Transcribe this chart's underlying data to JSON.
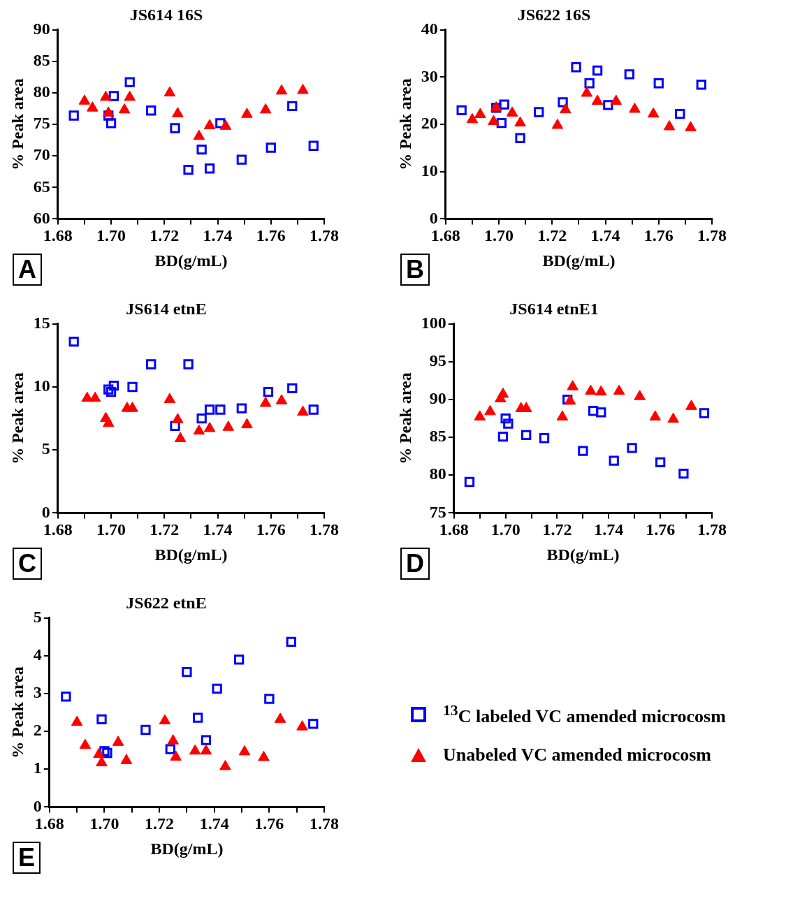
{
  "chart_data": [
    {
      "type": "scatter",
      "title": "JS614 16S",
      "xlabel": "BD(g/mL)",
      "ylabel": "% Peak area",
      "annotations": [
        "A"
      ],
      "xlim": [
        1.68,
        1.78
      ],
      "ylim": [
        60,
        90
      ],
      "yticks": [
        60,
        65,
        70,
        75,
        80,
        85,
        90
      ],
      "grid": false,
      "xticks": [
        1.68,
        {
          "value": 1.69,
          "label": null
        },
        {
          "value": 1.7,
          "label": "1.70"
        },
        {
          "value": 1.71,
          "label": null
        },
        1.72,
        {
          "value": 1.73,
          "label": null
        },
        1.74,
        {
          "value": 1.75,
          "label": null
        },
        1.76,
        {
          "value": 1.77,
          "label": null
        },
        1.78
      ],
      "series": [
        {
          "color": "#0000ff",
          "marker": "square",
          "x": [
            1.686,
            1.699,
            1.7,
            1.701,
            1.707,
            1.715,
            1.724,
            1.729,
            1.734,
            1.737,
            1.741,
            1.749,
            1.76,
            1.768,
            1.776
          ],
          "values": [
            76.4,
            76.4,
            75.2,
            79.5,
            81.7,
            77.2,
            74.4,
            67.8,
            71.0,
            68.0,
            75.2,
            69.4,
            71.3,
            77.9,
            71.6
          ]
        },
        {
          "color": "#ff0000",
          "marker": "triangle",
          "x": [
            1.69,
            1.693,
            1.698,
            1.699,
            1.705,
            1.707,
            1.722,
            1.725,
            1.733,
            1.737,
            1.743,
            1.751,
            1.758,
            1.764,
            1.772
          ],
          "values": [
            78.7,
            77.6,
            79.3,
            76.8,
            77.3,
            79.3,
            80.0,
            76.7,
            73.1,
            74.8,
            74.7,
            76.6,
            77.3,
            80.3,
            80.4
          ]
        }
      ]
    },
    {
      "type": "scatter",
      "title": "JS622 16S",
      "xlabel": "BD(g/mL)",
      "ylabel": "% Peak area",
      "annotations": [
        "B"
      ],
      "xlim": [
        1.68,
        1.78
      ],
      "ylim": [
        0,
        40
      ],
      "yticks": [
        0,
        10,
        20,
        30,
        40
      ],
      "grid": false,
      "xticks": [
        1.68,
        {
          "value": 1.69,
          "label": null
        },
        {
          "value": 1.7,
          "label": "1.70"
        },
        {
          "value": 1.71,
          "label": null
        },
        1.72,
        {
          "value": 1.73,
          "label": null
        },
        1.74,
        {
          "value": 1.75,
          "label": null
        },
        1.76,
        {
          "value": 1.77,
          "label": null
        },
        1.78
      ],
      "series": [
        {
          "color": "#0000ff",
          "marker": "square",
          "x": [
            1.686,
            1.699,
            1.701,
            1.702,
            1.708,
            1.715,
            1.724,
            1.729,
            1.734,
            1.737,
            1.741,
            1.749,
            1.76,
            1.768,
            1.776
          ],
          "values": [
            23.0,
            23.5,
            20.3,
            24.2,
            17.1,
            22.6,
            24.7,
            32.1,
            28.7,
            31.4,
            24.1,
            30.6,
            28.7,
            22.2,
            28.4
          ]
        },
        {
          "color": "#ff0000",
          "marker": "triangle",
          "x": [
            1.69,
            1.693,
            1.698,
            1.699,
            1.705,
            1.708,
            1.722,
            1.725,
            1.733,
            1.737,
            1.744,
            1.751,
            1.758,
            1.764,
            1.772
          ],
          "values": [
            21.0,
            22.1,
            20.6,
            23.5,
            22.4,
            20.3,
            19.8,
            23.1,
            26.6,
            24.9,
            24.9,
            23.2,
            22.2,
            19.5,
            19.3
          ]
        }
      ]
    },
    {
      "type": "scatter",
      "title": "JS614 etnE",
      "xlabel": "BD(g/mL)",
      "ylabel": "% Peak area",
      "annotations": [
        "C"
      ],
      "xlim": [
        1.68,
        1.78
      ],
      "ylim": [
        0,
        15
      ],
      "yticks": [
        0,
        5,
        10,
        15
      ],
      "grid": false,
      "xticks": [
        1.68,
        {
          "value": 1.69,
          "label": null
        },
        {
          "value": 1.7,
          "label": "1.70"
        },
        {
          "value": 1.71,
          "label": null
        },
        1.72,
        {
          "value": 1.73,
          "label": null
        },
        1.74,
        {
          "value": 1.75,
          "label": null
        },
        1.76,
        {
          "value": 1.77,
          "label": null
        },
        1.78
      ],
      "series": [
        {
          "color": "#0000ff",
          "marker": "square",
          "x": [
            1.686,
            1.699,
            1.7,
            1.701,
            1.708,
            1.715,
            1.724,
            1.729,
            1.734,
            1.737,
            1.741,
            1.749,
            1.759,
            1.768,
            1.776
          ],
          "values": [
            13.6,
            9.8,
            9.6,
            10.1,
            10.0,
            11.8,
            6.9,
            11.8,
            7.5,
            8.2,
            8.2,
            8.3,
            9.6,
            9.9,
            8.2
          ]
        },
        {
          "color": "#ff0000",
          "marker": "triangle",
          "x": [
            1.691,
            1.694,
            1.698,
            1.699,
            1.706,
            1.708,
            1.722,
            1.725,
            1.726,
            1.733,
            1.737,
            1.744,
            1.751,
            1.758,
            1.764,
            1.772
          ],
          "values": [
            9.1,
            9.1,
            7.5,
            7.1,
            8.3,
            8.3,
            9.0,
            7.4,
            5.9,
            6.5,
            6.7,
            6.8,
            7.0,
            8.7,
            8.9,
            8.0
          ]
        }
      ]
    },
    {
      "type": "scatter",
      "title": "JS614 etnE1",
      "xlabel": "BD(g/mL)",
      "ylabel": "% Peak area",
      "annotations": [
        "D"
      ],
      "xlim": [
        1.68,
        1.78
      ],
      "ylim": [
        75,
        100
      ],
      "yticks": [
        75,
        80,
        85,
        90,
        95,
        100
      ],
      "grid": false,
      "xticks": [
        1.68,
        {
          "value": 1.69,
          "label": null
        },
        {
          "value": 1.7,
          "label": "1.70"
        },
        {
          "value": 1.71,
          "label": null
        },
        1.72,
        {
          "value": 1.73,
          "label": null
        },
        1.74,
        {
          "value": 1.75,
          "label": null
        },
        1.76,
        {
          "value": 1.77,
          "label": null
        },
        1.78
      ],
      "series": [
        {
          "color": "#0000ff",
          "marker": "square",
          "x": [
            1.686,
            1.699,
            1.7,
            1.701,
            1.708,
            1.715,
            1.724,
            1.73,
            1.734,
            1.737,
            1.742,
            1.749,
            1.76,
            1.769,
            1.777
          ],
          "values": [
            79.1,
            85.1,
            87.5,
            86.8,
            85.3,
            84.9,
            90.0,
            83.2,
            88.5,
            88.3,
            81.9,
            83.6,
            81.7,
            80.2,
            88.2
          ]
        },
        {
          "color": "#ff0000",
          "marker": "triangle",
          "x": [
            1.69,
            1.694,
            1.698,
            1.699,
            1.706,
            1.708,
            1.722,
            1.725,
            1.726,
            1.733,
            1.737,
            1.744,
            1.752,
            1.758,
            1.765,
            1.772
          ],
          "values": [
            87.7,
            88.4,
            90.1,
            90.7,
            88.8,
            88.8,
            87.7,
            89.8,
            91.7,
            91.1,
            91.0,
            91.1,
            90.4,
            87.7,
            87.4,
            89.1
          ]
        }
      ]
    },
    {
      "type": "scatter",
      "title": "JS622 etnE",
      "xlabel": "BD(g/mL)",
      "ylabel": "% Peak area",
      "annotations": [
        "E"
      ],
      "xlim": [
        1.68,
        1.78
      ],
      "ylim": [
        0,
        5
      ],
      "yticks": [
        0,
        1,
        2,
        3,
        4,
        5
      ],
      "grid": false,
      "legend": "right",
      "xticks": [
        1.68,
        {
          "value": 1.69,
          "label": null
        },
        {
          "value": 1.7,
          "label": "1.70"
        },
        {
          "value": 1.71,
          "label": null
        },
        1.72,
        {
          "value": 1.73,
          "label": null
        },
        1.74,
        {
          "value": 1.75,
          "label": null
        },
        1.76,
        {
          "value": 1.77,
          "label": null
        },
        1.78
      ],
      "series": [
        {
          "name": "$^{13}$C labeled VC amended microcosm",
          "color": "#0000ff",
          "marker": "square",
          "x": [
            1.686,
            1.699,
            1.7,
            1.701,
            1.715,
            1.724,
            1.73,
            1.734,
            1.737,
            1.741,
            1.749,
            1.76,
            1.768,
            1.776
          ],
          "values": [
            2.92,
            2.32,
            1.48,
            1.43,
            2.04,
            1.53,
            3.57,
            2.36,
            1.77,
            3.13,
            3.9,
            2.86,
            4.37,
            2.2
          ]
        },
        {
          "name": "Unabeled VC amended microcosm",
          "color": "#ff0000",
          "marker": "triangle",
          "x": [
            1.69,
            1.693,
            1.698,
            1.699,
            1.705,
            1.708,
            1.722,
            1.725,
            1.726,
            1.733,
            1.737,
            1.744,
            1.751,
            1.758,
            1.764,
            1.772
          ],
          "values": [
            2.24,
            1.63,
            1.39,
            1.17,
            1.71,
            1.23,
            2.28,
            1.75,
            1.32,
            1.48,
            1.48,
            1.07,
            1.46,
            1.31,
            2.32,
            2.12
          ]
        }
      ]
    }
  ]
}
